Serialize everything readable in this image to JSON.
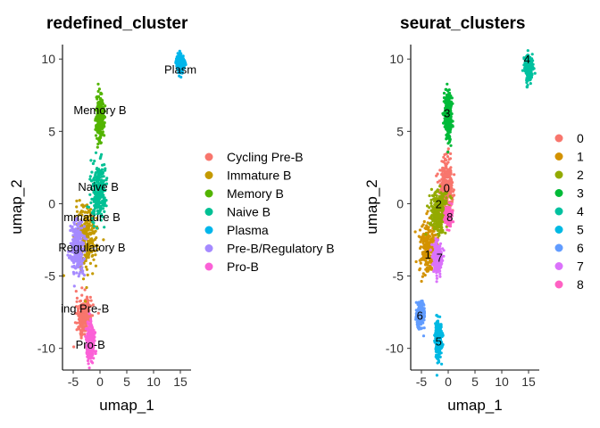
{
  "chart_data": [
    {
      "type": "scatter",
      "title": "redefined_cluster",
      "xlabel": "umap_1",
      "ylabel": "umap_2",
      "xlim": [
        -7,
        17
      ],
      "ylim": [
        -11.5,
        11
      ],
      "xticks": [
        -5,
        0,
        5,
        10,
        15
      ],
      "yticks": [
        -10,
        -5,
        0,
        5,
        10
      ],
      "grid": false,
      "legend_position": "right",
      "series": [
        {
          "name": "Cycling Pre-B",
          "color": "#F8766D",
          "cx": -3.0,
          "cy": -7.8,
          "sx": 0.7,
          "sy": 0.6
        },
        {
          "name": "Immature B",
          "color": "#C49A00",
          "cx": -2.5,
          "cy": -2.3,
          "sx": 1.0,
          "sy": 1.1
        },
        {
          "name": "Memory B",
          "color": "#53B400",
          "cx": 0.0,
          "cy": 6.0,
          "sx": 0.35,
          "sy": 0.8
        },
        {
          "name": "Naive B",
          "color": "#00C094",
          "cx": -0.3,
          "cy": 0.8,
          "sx": 0.7,
          "sy": 0.9
        },
        {
          "name": "Plasma",
          "color": "#00B6EB",
          "cx": 15.0,
          "cy": 9.7,
          "sx": 0.35,
          "sy": 0.3
        },
        {
          "name": "Pre-B/Regulatory B",
          "color": "#A58AFF",
          "cx": -4.2,
          "cy": -3.0,
          "sx": 0.7,
          "sy": 0.9
        },
        {
          "name": "Pro-B",
          "color": "#FB61D7",
          "cx": -1.8,
          "cy": -9.6,
          "sx": 0.35,
          "sy": 0.6
        }
      ],
      "annotations": [
        {
          "text": "Plasm",
          "x": 15.0,
          "y": 9.2
        },
        {
          "text": "Memory B",
          "x": 0.0,
          "y": 6.4
        },
        {
          "text": "Naive B",
          "x": -0.3,
          "y": 1.1
        },
        {
          "text": "mmature B",
          "x": -1.5,
          "y": -1.0
        },
        {
          "text": "Regulatory B",
          "x": -1.5,
          "y": -3.1
        },
        {
          "text": "ing Pre-B",
          "x": -2.8,
          "y": -7.3
        },
        {
          "text": "Pro-B",
          "x": -1.8,
          "y": -9.8
        }
      ]
    },
    {
      "type": "scatter",
      "title": "seurat_clusters",
      "xlabel": "umap_1",
      "ylabel": "umap_2",
      "xlim": [
        -7,
        17
      ],
      "ylim": [
        -11.5,
        11
      ],
      "xticks": [
        -5,
        0,
        5,
        10,
        15
      ],
      "yticks": [
        -10,
        -5,
        0,
        5,
        10
      ],
      "grid": false,
      "legend_position": "right",
      "series": [
        {
          "name": "0",
          "color": "#F8766D",
          "cx": -0.3,
          "cy": 1.2,
          "sx": 0.6,
          "sy": 0.9
        },
        {
          "name": "1",
          "color": "#D39200",
          "cx": -3.8,
          "cy": -3.0,
          "sx": 0.8,
          "sy": 0.9
        },
        {
          "name": "2",
          "color": "#93AA00",
          "cx": -1.8,
          "cy": -0.6,
          "sx": 0.8,
          "sy": 0.8
        },
        {
          "name": "3",
          "color": "#00BA38",
          "cx": 0.0,
          "cy": 6.0,
          "sx": 0.35,
          "sy": 0.8
        },
        {
          "name": "4",
          "color": "#00C19F",
          "cx": 15.0,
          "cy": 9.4,
          "sx": 0.35,
          "sy": 0.4
        },
        {
          "name": "5",
          "color": "#00B9E3",
          "cx": -1.8,
          "cy": -9.4,
          "sx": 0.35,
          "sy": 0.7
        },
        {
          "name": "6",
          "color": "#619CFF",
          "cx": -5.2,
          "cy": -7.6,
          "sx": 0.35,
          "sy": 0.4
        },
        {
          "name": "7",
          "color": "#DB72FB",
          "cx": -2.0,
          "cy": -3.8,
          "sx": 0.4,
          "sy": 0.5
        },
        {
          "name": "8",
          "color": "#FF61C3",
          "cx": 0.0,
          "cy": -0.9,
          "sx": 0.3,
          "sy": 0.3
        }
      ],
      "annotations": [
        {
          "text": "4",
          "x": 14.7,
          "y": 9.9
        },
        {
          "text": "3",
          "x": -0.2,
          "y": 6.2
        },
        {
          "text": "0",
          "x": -0.3,
          "y": 1.0
        },
        {
          "text": "2",
          "x": -1.8,
          "y": -0.1
        },
        {
          "text": "8",
          "x": 0.3,
          "y": -1.0
        },
        {
          "text": "1",
          "x": -3.8,
          "y": -3.6
        },
        {
          "text": "7",
          "x": -1.6,
          "y": -3.8
        },
        {
          "text": "6",
          "x": -5.3,
          "y": -7.8
        },
        {
          "text": "5",
          "x": -1.8,
          "y": -9.6
        }
      ]
    }
  ]
}
